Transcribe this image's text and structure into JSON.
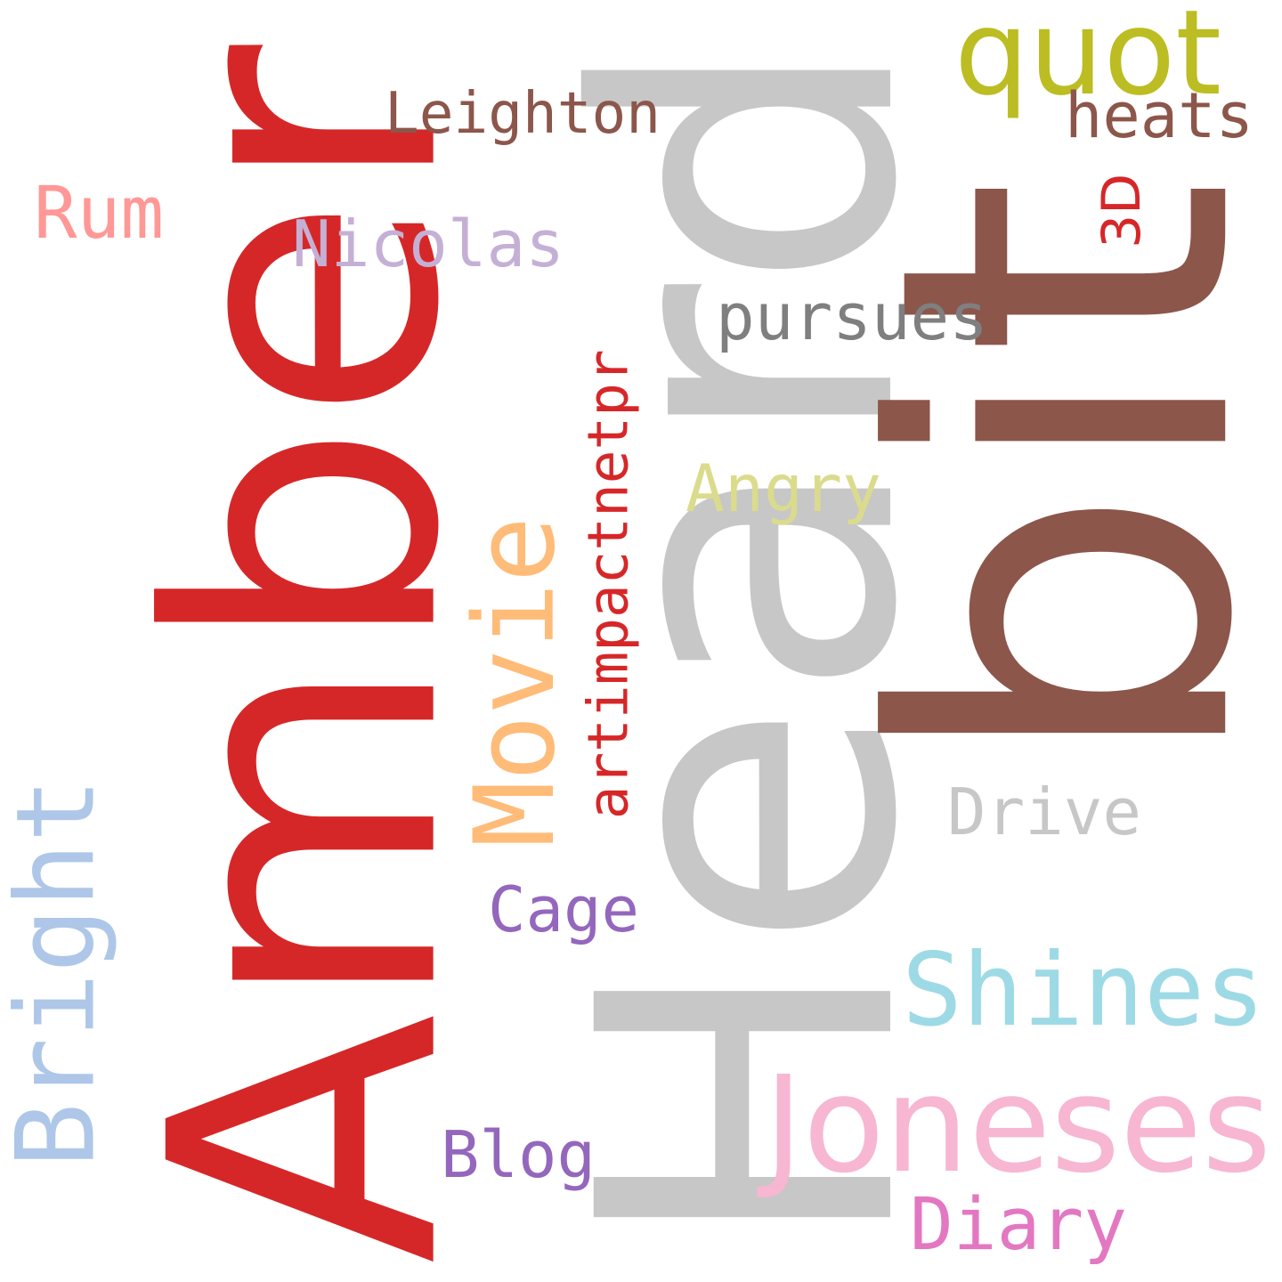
{
  "words": [
    {
      "text": "Amber",
      "color": "#d62728"
    },
    {
      "text": "Heard",
      "color": "#c7c7c7"
    },
    {
      "text": "bit",
      "color": "#8c564b"
    },
    {
      "text": "quot",
      "color": "#bcbd22"
    },
    {
      "text": "Leighton",
      "color": "#8c564b"
    },
    {
      "text": "heats",
      "color": "#8c564b"
    },
    {
      "text": "3D",
      "color": "#d62728"
    },
    {
      "text": "Rum",
      "color": "#ff9896"
    },
    {
      "text": "Nicolas",
      "color": "#c5b0d5"
    },
    {
      "text": "pursues",
      "color": "#7f7f7f"
    },
    {
      "text": "artimpactnetpr",
      "color": "#d62728"
    },
    {
      "text": "Angry",
      "color": "#dbdb8d"
    },
    {
      "text": "Movie",
      "color": "#ffbb78"
    },
    {
      "text": "Drive",
      "color": "#c7c7c7"
    },
    {
      "text": "Cage",
      "color": "#9467bd"
    },
    {
      "text": "Shines",
      "color": "#9edae5"
    },
    {
      "text": "Bright",
      "color": "#aec7e8"
    },
    {
      "text": "Joneses",
      "color": "#f7b6d2"
    },
    {
      "text": "Blog",
      "color": "#9467bd"
    },
    {
      "text": "Diary",
      "color": "#e377c2"
    }
  ]
}
